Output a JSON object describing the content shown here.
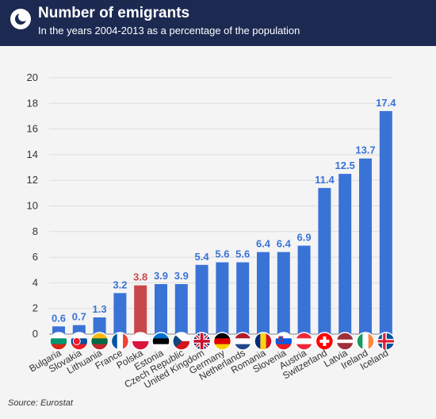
{
  "header": {
    "title": "Number of emigrants",
    "subtitle": "In the years 2004-2013 as a percentage of the population"
  },
  "source": "Source: Eurostat",
  "colors": {
    "header_bg": "#1c2a52",
    "bar": "#3a73d6",
    "bar_highlight": "#c9474b",
    "label": "#3a73d6",
    "label_highlight": "#c9474b"
  },
  "chart_data": {
    "type": "bar",
    "title": "Number of emigrants",
    "subtitle": "In the years 2004-2013 as a percentage of the population",
    "xlabel": "",
    "ylabel": "",
    "ylim": [
      0,
      20
    ],
    "yticks": [
      0,
      2,
      4,
      6,
      8,
      10,
      12,
      14,
      16,
      18,
      20
    ],
    "grid": true,
    "highlight_category": "Polska",
    "categories": [
      "Bulgaria",
      "Slovakia",
      "Lithuania",
      "France",
      "Polska",
      "Estonia",
      "Czech Republic",
      "United Kingdom",
      "Germany",
      "Netherlands",
      "Romania",
      "Slovenia",
      "Austria",
      "Switzerland",
      "Latvia",
      "Ireland",
      "Iceland"
    ],
    "values": [
      0.6,
      0.7,
      1.3,
      3.2,
      3.8,
      3.9,
      3.9,
      5.4,
      5.6,
      5.6,
      6.4,
      6.4,
      6.9,
      11.4,
      12.5,
      13.7,
      17.4
    ],
    "flag_icons": [
      "bulgaria-flag-icon",
      "slovakia-flag-icon",
      "lithuania-flag-icon",
      "france-flag-icon",
      "poland-flag-icon",
      "estonia-flag-icon",
      "czech-republic-flag-icon",
      "united-kingdom-flag-icon",
      "germany-flag-icon",
      "netherlands-flag-icon",
      "romania-flag-icon",
      "slovenia-flag-icon",
      "austria-flag-icon",
      "switzerland-flag-icon",
      "latvia-flag-icon",
      "ireland-flag-icon",
      "iceland-flag-icon"
    ]
  }
}
